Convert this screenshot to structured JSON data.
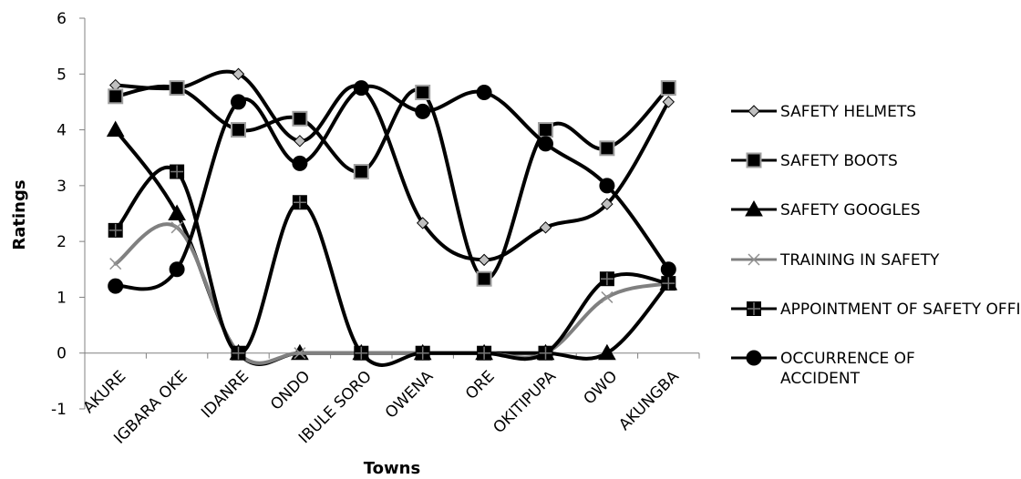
{
  "chart_data": {
    "type": "line",
    "title": "",
    "xlabel": "Towns",
    "ylabel": "Ratings",
    "ylim": [
      -1,
      6
    ],
    "yticks": [
      "-1",
      "0",
      "1",
      "2",
      "3",
      "4",
      "5",
      "6"
    ],
    "grid": false,
    "smooth": true,
    "legend_position": "right",
    "categories": [
      "AKURE",
      "IGBARA OKE",
      "IDANRE",
      "ONDO",
      "IBULE SORO",
      "OWENA",
      "ORE",
      "OKITIPUPA",
      "OWO",
      "AKUNGBA"
    ],
    "series": [
      {
        "name": "SAFETY HELMETS",
        "marker": "diamond",
        "color": "#000000",
        "values": [
          4.8,
          4.75,
          5.0,
          3.8,
          4.75,
          2.33,
          1.67,
          2.25,
          2.67,
          4.5
        ]
      },
      {
        "name": "SAFETY BOOTS",
        "marker": "square",
        "color": "#000000",
        "values": [
          4.6,
          4.75,
          4.0,
          4.2,
          3.25,
          4.67,
          1.33,
          4.0,
          3.67,
          4.75
        ]
      },
      {
        "name": "SAFETY GOOGLES",
        "marker": "triangle",
        "color": "#000000",
        "values": [
          4.0,
          2.5,
          0,
          0,
          0,
          0,
          0,
          0,
          0,
          1.25
        ]
      },
      {
        "name": "TRAINING IN SAFETY",
        "marker": "x",
        "color": "#808080",
        "values": [
          1.6,
          2.25,
          0,
          0,
          0,
          0,
          0,
          0,
          1.0,
          1.25
        ]
      },
      {
        "name": "APPOINTMENT OF SAFETY OFFICERS",
        "marker": "square-cross",
        "color": "#000000",
        "values": [
          2.2,
          3.25,
          0,
          2.7,
          0,
          0,
          0,
          0,
          1.33,
          1.25
        ]
      },
      {
        "name": "OCCURRENCE OF ACCIDENT",
        "marker": "circle",
        "color": "#000000",
        "values": [
          1.2,
          1.5,
          4.5,
          3.4,
          4.75,
          4.33,
          4.67,
          3.75,
          3.0,
          1.5
        ]
      }
    ]
  }
}
